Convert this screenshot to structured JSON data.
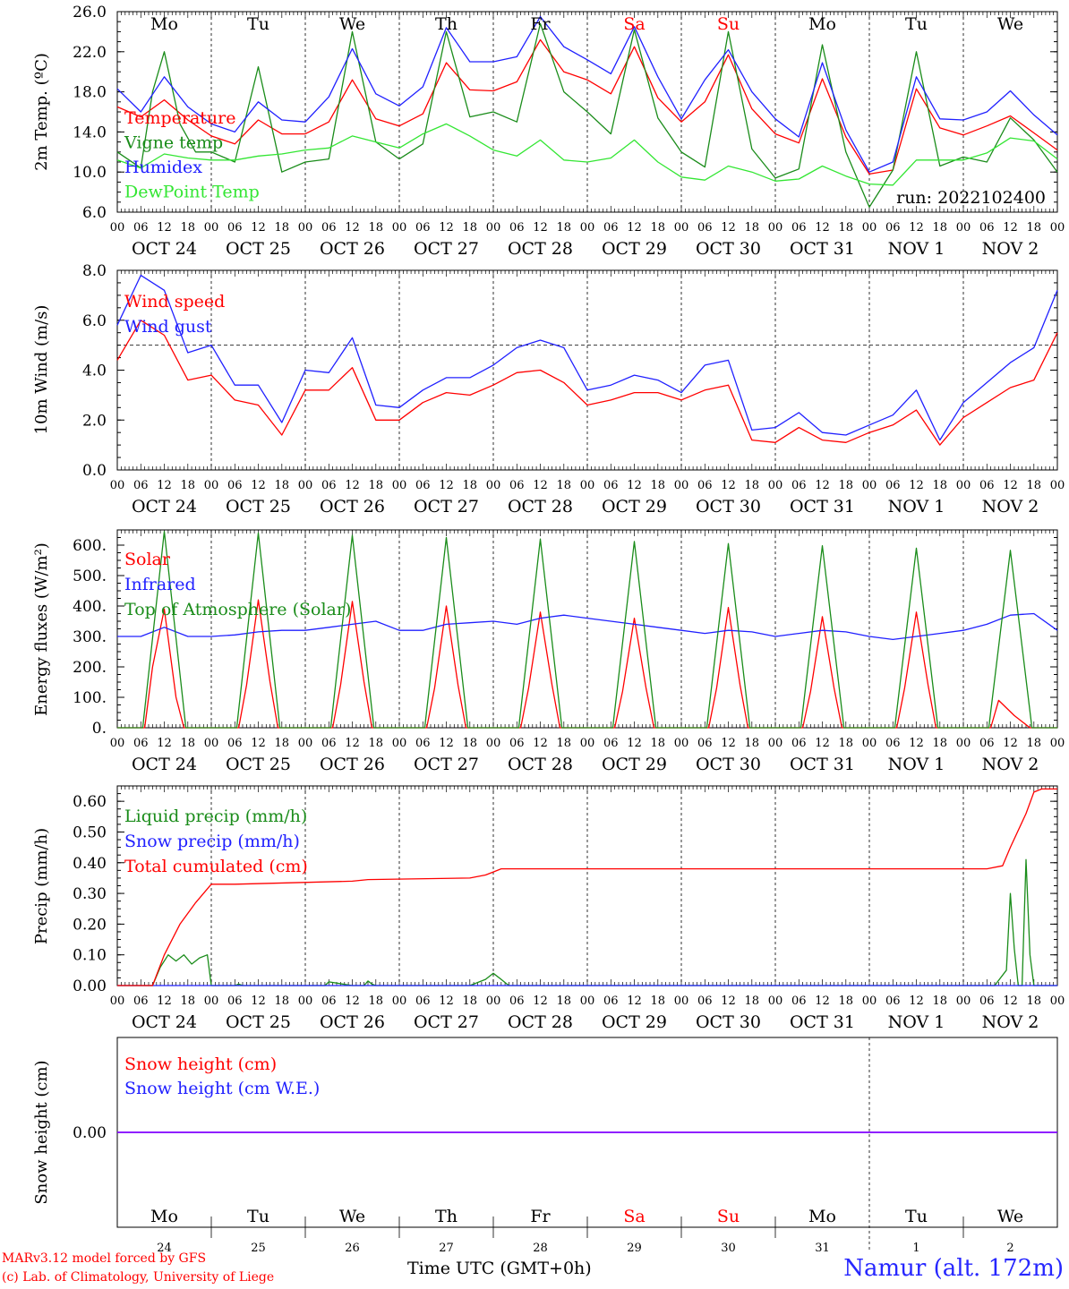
{
  "station": "Namur (alt. 172m)",
  "model_credit": "MARv3.12 model forced by GFS",
  "lab_credit": "(c) Lab. of Climatology, University of Liege",
  "time_axis_label": "Time UTC (GMT+0h)",
  "run_label": "run: 2022102400",
  "weekdays": [
    "Mo",
    "Tu",
    "We",
    "Th",
    "Fr",
    "Sa",
    "Su",
    "Mo",
    "Tu",
    "We"
  ],
  "weekend_days": [
    "Sa",
    "Su"
  ],
  "date_labels": [
    "OCT 24",
    "OCT 25",
    "OCT 26",
    "OCT 27",
    "OCT 28",
    "OCT 29",
    "OCT 30",
    "OCT 31",
    "NOV  1",
    "NOV  2"
  ],
  "day_numbers": [
    "24",
    "25",
    "26",
    "27",
    "28",
    "29",
    "30",
    "31",
    "1",
    "2"
  ],
  "hour_ticks": [
    "00",
    "06",
    "12",
    "18"
  ],
  "colors": {
    "red": "#ff0000",
    "green": "#1a8c1a",
    "blue": "#2020ff",
    "lightgreen": "#33e633",
    "purple": "#8000ff",
    "weekday": "#000000",
    "weekend": "#ff0000"
  },
  "chart_data": [
    {
      "type": "line",
      "ylabel": "2m Temp. (ºC)",
      "ylim": [
        6.0,
        26.0
      ],
      "yticks": [
        "6.0",
        "10.0",
        "14.0",
        "18.0",
        "22.0",
        "26.0"
      ],
      "x_unit": "hours since Oct 24 00 UTC",
      "series": [
        {
          "name": "Temperature",
          "color": "red",
          "x": [
            0,
            6,
            12,
            18,
            24,
            30,
            36,
            42,
            48,
            54,
            60,
            66,
            72,
            78,
            84,
            90,
            96,
            102,
            108,
            114,
            120,
            126,
            132,
            138,
            144,
            150,
            156,
            162,
            168,
            174,
            180,
            186,
            192,
            198,
            204,
            210,
            216,
            222,
            228,
            234,
            240
          ],
          "y": [
            16.5,
            15.5,
            17.2,
            15.2,
            13.6,
            12.8,
            15.2,
            13.8,
            13.8,
            15.0,
            19.2,
            15.3,
            14.6,
            15.8,
            20.9,
            18.2,
            18.1,
            19.0,
            23.2,
            20.0,
            19.2,
            17.8,
            22.5,
            17.4,
            15.0,
            17.0,
            21.7,
            16.3,
            13.8,
            12.9,
            19.3,
            13.5,
            9.8,
            10.2,
            18.3,
            14.4,
            13.7,
            14.6,
            15.6,
            13.9,
            12.2
          ]
        },
        {
          "name": "Vigne temp",
          "color": "green",
          "x": [
            0,
            6,
            9,
            12,
            16,
            20,
            24,
            30,
            36,
            42,
            48,
            54,
            60,
            66,
            72,
            78,
            84,
            90,
            96,
            102,
            108,
            114,
            120,
            126,
            132,
            138,
            144,
            150,
            156,
            162,
            168,
            174,
            180,
            186,
            192,
            198,
            204,
            210,
            216,
            222,
            228,
            234,
            240
          ],
          "y": [
            12.0,
            10.4,
            18.0,
            22.0,
            14.8,
            12.0,
            12.0,
            11.0,
            20.5,
            10.0,
            11.0,
            11.3,
            24.0,
            13.0,
            11.3,
            12.8,
            24.0,
            15.5,
            16.0,
            15.0,
            24.8,
            18.0,
            16.0,
            13.8,
            24.2,
            15.4,
            12.0,
            10.5,
            24.0,
            12.3,
            9.4,
            10.3,
            22.7,
            12.0,
            6.5,
            10.2,
            22.0,
            10.6,
            11.5,
            11.0,
            15.4,
            13.2,
            10.0
          ]
        },
        {
          "name": "Humidex",
          "color": "blue",
          "x": [
            0,
            6,
            12,
            18,
            24,
            30,
            36,
            42,
            48,
            54,
            60,
            66,
            72,
            78,
            84,
            90,
            96,
            102,
            108,
            114,
            120,
            126,
            132,
            138,
            144,
            150,
            156,
            162,
            168,
            174,
            180,
            186,
            192,
            198,
            204,
            210,
            216,
            222,
            228,
            234,
            240
          ],
          "y": [
            18.3,
            16.0,
            19.5,
            16.5,
            14.8,
            14.0,
            17.0,
            15.2,
            15.0,
            17.5,
            22.3,
            17.8,
            16.6,
            18.5,
            24.4,
            21.0,
            21.0,
            21.5,
            25.5,
            22.5,
            21.2,
            19.8,
            24.5,
            19.5,
            15.3,
            19.2,
            22.2,
            18.0,
            15.3,
            13.5,
            20.9,
            14.2,
            10.0,
            11.0,
            19.5,
            15.3,
            15.2,
            16.0,
            18.1,
            15.7,
            13.7
          ]
        },
        {
          "name": "DewPoint Temp",
          "color": "lightgreen",
          "x": [
            0,
            6,
            12,
            18,
            24,
            30,
            36,
            42,
            48,
            54,
            60,
            66,
            72,
            78,
            84,
            90,
            96,
            102,
            108,
            114,
            120,
            126,
            132,
            138,
            144,
            150,
            156,
            162,
            168,
            174,
            180,
            186,
            192,
            198,
            204,
            210,
            216,
            222,
            228,
            234,
            240
          ],
          "y": [
            11.2,
            10.4,
            11.8,
            11.4,
            11.2,
            11.2,
            11.6,
            11.8,
            12.2,
            12.4,
            13.6,
            13.0,
            12.4,
            13.8,
            14.8,
            13.6,
            12.2,
            11.6,
            13.2,
            11.2,
            11.0,
            11.4,
            13.2,
            11.0,
            9.5,
            9.2,
            10.6,
            10.0,
            9.1,
            9.3,
            10.6,
            9.6,
            8.8,
            8.7,
            11.2,
            11.2,
            11.2,
            11.9,
            13.4,
            13.1,
            11.3
          ]
        }
      ]
    },
    {
      "type": "line",
      "ylabel": "10m Wind (m/s)",
      "ylim": [
        0.0,
        8.0
      ],
      "yticks": [
        "0.0",
        "2.0",
        "4.0",
        "6.0",
        "8.0"
      ],
      "reference_line": 5.0,
      "series": [
        {
          "name": "Wind speed",
          "color": "red",
          "x": [
            0,
            6,
            12,
            18,
            24,
            30,
            36,
            42,
            48,
            54,
            60,
            66,
            72,
            78,
            84,
            90,
            96,
            102,
            108,
            114,
            120,
            126,
            132,
            138,
            144,
            150,
            156,
            162,
            168,
            174,
            180,
            186,
            192,
            198,
            204,
            210,
            216,
            222,
            228,
            234,
            240
          ],
          "y": [
            4.4,
            6.0,
            5.4,
            3.6,
            3.8,
            2.8,
            2.6,
            1.4,
            3.2,
            3.2,
            4.1,
            2.0,
            2.0,
            2.7,
            3.1,
            3.0,
            3.4,
            3.9,
            4.0,
            3.5,
            2.6,
            2.8,
            3.1,
            3.1,
            2.8,
            3.2,
            3.4,
            1.2,
            1.1,
            1.7,
            1.2,
            1.1,
            1.5,
            1.8,
            2.4,
            1.0,
            2.1,
            2.7,
            3.3,
            3.6,
            5.5
          ]
        },
        {
          "name": "Wind gust",
          "color": "blue",
          "x": [
            0,
            6,
            12,
            18,
            24,
            30,
            36,
            42,
            48,
            54,
            60,
            66,
            72,
            78,
            84,
            90,
            96,
            102,
            108,
            114,
            120,
            126,
            132,
            138,
            144,
            150,
            156,
            162,
            168,
            174,
            180,
            186,
            192,
            198,
            204,
            210,
            216,
            222,
            228,
            234,
            240
          ],
          "y": [
            5.8,
            7.8,
            7.2,
            4.7,
            5.0,
            3.4,
            3.4,
            1.9,
            4.0,
            3.9,
            5.3,
            2.6,
            2.5,
            3.2,
            3.7,
            3.7,
            4.2,
            4.9,
            5.2,
            4.9,
            3.2,
            3.4,
            3.8,
            3.6,
            3.1,
            4.2,
            4.4,
            1.6,
            1.7,
            2.3,
            1.5,
            1.4,
            1.8,
            2.2,
            3.2,
            1.2,
            2.7,
            3.5,
            4.3,
            4.9,
            7.2
          ]
        }
      ]
    },
    {
      "type": "line",
      "ylabel": "Energy fluxes (W/m²)",
      "ylim": [
        0,
        650
      ],
      "yticks": [
        "0.",
        "100.",
        "200.",
        "300.",
        "400.",
        "500.",
        "600."
      ],
      "series": [
        {
          "name": "Solar",
          "color": "red",
          "x": [
            0,
            7,
            9,
            12,
            15,
            17,
            24,
            31,
            33,
            36,
            39,
            41,
            48,
            55,
            57,
            60,
            63,
            65,
            72,
            79,
            81,
            84,
            87,
            89,
            96,
            103,
            105,
            108,
            111,
            113,
            120,
            127,
            129,
            132,
            135,
            137,
            144,
            151,
            153,
            156,
            159,
            161,
            168,
            175,
            177,
            180,
            183,
            185,
            192,
            199,
            201,
            204,
            207,
            209,
            216,
            223,
            225,
            229,
            233,
            240
          ],
          "y": [
            0,
            0,
            200,
            390,
            100,
            0,
            0,
            0,
            140,
            420,
            150,
            0,
            0,
            0,
            140,
            415,
            150,
            0,
            0,
            0,
            130,
            400,
            140,
            0,
            0,
            0,
            130,
            380,
            140,
            0,
            0,
            0,
            120,
            360,
            130,
            0,
            0,
            0,
            130,
            395,
            140,
            0,
            0,
            0,
            120,
            365,
            130,
            0,
            0,
            0,
            130,
            380,
            140,
            0,
            0,
            0,
            90,
            40,
            0,
            0
          ]
        },
        {
          "name": "Infrared",
          "color": "blue",
          "x": [
            0,
            6,
            12,
            18,
            24,
            30,
            36,
            42,
            48,
            54,
            60,
            66,
            72,
            78,
            84,
            90,
            96,
            102,
            108,
            114,
            120,
            126,
            132,
            138,
            144,
            150,
            156,
            162,
            168,
            174,
            180,
            186,
            192,
            198,
            204,
            210,
            216,
            222,
            228,
            234,
            240
          ],
          "y": [
            300,
            300,
            330,
            300,
            300,
            305,
            315,
            320,
            320,
            330,
            340,
            350,
            320,
            320,
            340,
            345,
            350,
            340,
            360,
            370,
            360,
            350,
            340,
            330,
            320,
            310,
            320,
            315,
            300,
            310,
            320,
            315,
            300,
            290,
            300,
            310,
            320,
            340,
            370,
            375,
            320
          ]
        },
        {
          "name": "Top of Atmosphere (Solar)",
          "color": "green",
          "x": [
            0,
            6.5,
            12,
            17.5,
            24,
            30.5,
            36,
            41.5,
            48,
            54.5,
            60,
            65.5,
            72,
            78.5,
            84,
            89.5,
            96,
            102.5,
            108,
            113.5,
            120,
            126.5,
            132,
            137.5,
            144,
            150.5,
            156,
            161.5,
            168,
            174.5,
            180,
            185.5,
            192,
            198.5,
            204,
            209.5,
            216,
            222.5,
            228,
            233.5,
            240
          ],
          "y": [
            0,
            0,
            645,
            0,
            0,
            0,
            640,
            0,
            0,
            0,
            632,
            0,
            0,
            0,
            625,
            0,
            0,
            0,
            620,
            0,
            0,
            0,
            612,
            0,
            0,
            0,
            605,
            0,
            0,
            0,
            598,
            0,
            0,
            0,
            590,
            0,
            0,
            0,
            583,
            0,
            0
          ]
        }
      ]
    },
    {
      "type": "line",
      "ylabel": "Precip (mm/h)",
      "ylim": [
        0.0,
        0.65
      ],
      "yticks": [
        "0.00",
        "0.10",
        "0.20",
        "0.30",
        "0.40",
        "0.50",
        "0.60"
      ],
      "series": [
        {
          "name": "Liquid precip (mm/h)",
          "color": "green",
          "x": [
            0,
            9,
            11,
            13,
            15,
            17,
            19,
            21,
            23,
            24,
            30,
            31,
            32,
            48,
            53,
            54,
            60,
            63,
            64,
            65,
            66,
            90,
            94,
            96,
            98,
            99,
            100,
            224,
            227,
            228,
            229,
            230,
            231,
            232,
            233,
            234,
            240
          ],
          "y": [
            0,
            0,
            0.06,
            0.1,
            0.08,
            0.1,
            0.07,
            0.09,
            0.1,
            0,
            0,
            0.005,
            0,
            0,
            0,
            0.012,
            0,
            0,
            0.015,
            0.005,
            0,
            0,
            0.02,
            0.04,
            0.02,
            0.01,
            0,
            0,
            0.05,
            0.3,
            0.12,
            0,
            0,
            0.41,
            0.1,
            0,
            0
          ]
        },
        {
          "name": "Snow precip (mm/h)",
          "color": "blue",
          "x": [
            0,
            240
          ],
          "y": [
            0,
            0
          ]
        },
        {
          "name": "Total cumulated (cm)",
          "color": "red",
          "x": [
            0,
            9,
            12,
            16,
            20,
            24,
            30,
            60,
            64,
            90,
            94,
            96,
            98,
            222,
            226,
            228,
            232,
            234,
            236,
            240
          ],
          "y": [
            0,
            0,
            0.1,
            0.2,
            0.27,
            0.33,
            0.33,
            0.34,
            0.345,
            0.35,
            0.36,
            0.37,
            0.38,
            0.38,
            0.39,
            0.45,
            0.56,
            0.63,
            0.64,
            0.64
          ]
        }
      ]
    },
    {
      "type": "line",
      "ylabel": "Snow height (cm)",
      "ylim": [
        -1,
        1
      ],
      "yticks": [
        "0.00"
      ],
      "series": [
        {
          "name": "Snow height (cm)",
          "color": "red",
          "x": [
            0,
            240
          ],
          "y": [
            0,
            0
          ]
        },
        {
          "name": "Snow height (cm W.E.)",
          "color": "blue",
          "x": [
            0,
            240
          ],
          "y": [
            0,
            0
          ]
        }
      ]
    }
  ]
}
